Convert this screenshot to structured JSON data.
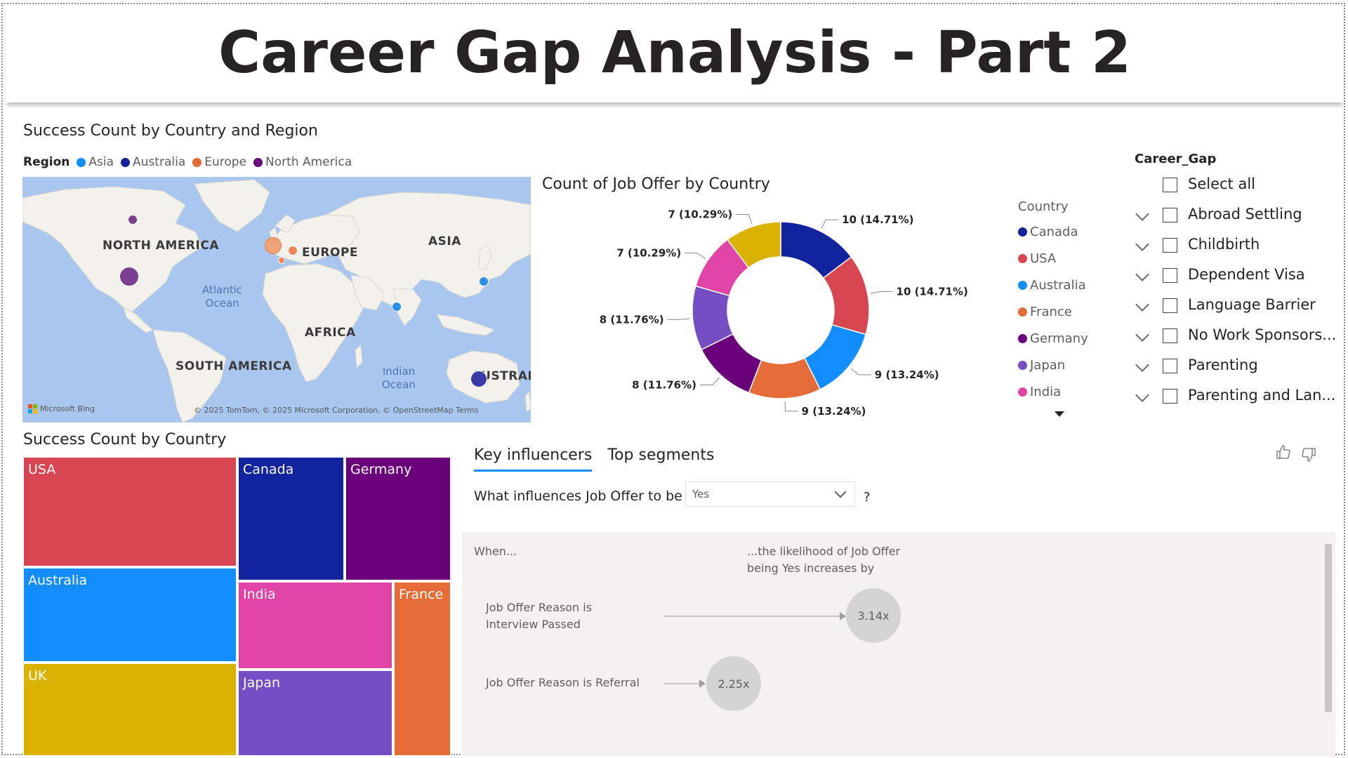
{
  "page": {
    "title": "Career Gap Analysis - Part 2"
  },
  "map_visual": {
    "title": "Success Count by Country and Region",
    "legend_title": "Region",
    "legend": [
      {
        "name": "Asia",
        "color": "#118dff"
      },
      {
        "name": "Australia",
        "color": "#12239e"
      },
      {
        "name": "Europe",
        "color": "#e66c37"
      },
      {
        "name": "North America",
        "color": "#6b007b"
      }
    ],
    "continent_labels": {
      "north_america": "NORTH AMERICA",
      "europe": "EUROPE",
      "asia": "ASIA",
      "africa": "AFRICA",
      "south_america": "SOUTH AMERICA",
      "australia": "AUSTRALIA"
    },
    "ocean_labels": {
      "atlantic": "Atlantic\nOcean",
      "indian": "Indian\nOcean"
    },
    "attribution_left": "Microsoft Bing",
    "attribution_right": "© 2025 TomTom, © 2025 Microsoft Corporation, © OpenStreetMap  Terms"
  },
  "donut_visual": {
    "title": "Count of Job Offer by Country",
    "legend_title": "Country",
    "legend": [
      {
        "name": "Canada",
        "color": "#12239e"
      },
      {
        "name": "USA",
        "color": "#d64550"
      },
      {
        "name": "Australia",
        "color": "#118dff"
      },
      {
        "name": "France",
        "color": "#e66c37"
      },
      {
        "name": "Germany",
        "color": "#6b007b"
      },
      {
        "name": "Japan",
        "color": "#744ec2"
      },
      {
        "name": "India",
        "color": "#e044a7"
      }
    ]
  },
  "chart_data": {
    "type": "pie",
    "title": "Count of Job Offer by Country",
    "categories": [
      "Canada",
      "USA",
      "Australia",
      "France",
      "Germany",
      "Japan",
      "India",
      "UK"
    ],
    "values": [
      10,
      10,
      9,
      9,
      8,
      8,
      7,
      7
    ],
    "data_labels": [
      "10 (14.71%)",
      "10 (14.71%)",
      "9 (13.24%)",
      "9 (13.24%)",
      "8 (11.76%)",
      "8 (11.76%)",
      "7 (10.29%)",
      "7 (10.29%)"
    ],
    "colors": [
      "#12239e",
      "#d64550",
      "#118dff",
      "#e66c37",
      "#6b007b",
      "#744ec2",
      "#e044a7",
      "#d9b300"
    ],
    "legend_placement": "right"
  },
  "slicer": {
    "title": "Career_Gap",
    "items": [
      {
        "label": "Select all",
        "expandable": false
      },
      {
        "label": "Abroad Settling",
        "expandable": true
      },
      {
        "label": "Childbirth",
        "expandable": true
      },
      {
        "label": "Dependent Visa",
        "expandable": true
      },
      {
        "label": "Language Barrier",
        "expandable": true
      },
      {
        "label": "No Work Sponsors...",
        "expandable": true
      },
      {
        "label": "Parenting",
        "expandable": true
      },
      {
        "label": "Parenting and Lan...",
        "expandable": true
      }
    ]
  },
  "treemap_visual": {
    "title": "Success Count by Country",
    "cells": [
      {
        "label": "USA",
        "color": "#d64550"
      },
      {
        "label": "Australia",
        "color": "#118dff"
      },
      {
        "label": "UK",
        "color": "#d9b300"
      },
      {
        "label": "Canada",
        "color": "#12239e"
      },
      {
        "label": "Germany",
        "color": "#6b007b"
      },
      {
        "label": "India",
        "color": "#e044a7"
      },
      {
        "label": "France",
        "color": "#e66c37"
      },
      {
        "label": "Japan",
        "color": "#744ec2"
      }
    ]
  },
  "key_influencers": {
    "tabs": [
      "Key influencers",
      "Top segments"
    ],
    "question": "What influences Job Offer to be",
    "selected_value": "Yes",
    "question_mark": "?",
    "when_label": "When...",
    "likelihood_label": "...the likelihood of Job Offer\nbeing Yes increases by",
    "influencers": [
      {
        "label": "Job Offer Reason is\nInterview Passed",
        "multiplier": 3.14,
        "value_text": "3.14x"
      },
      {
        "label": "Job Offer Reason is Referral",
        "multiplier": 2.25,
        "value_text": "2.25x"
      }
    ]
  }
}
